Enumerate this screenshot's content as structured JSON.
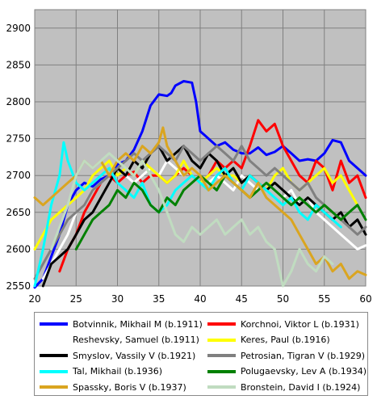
{
  "chart_data": {
    "type": "line",
    "title": "",
    "xlabel": "",
    "ylabel": "",
    "xlim": [
      20,
      60
    ],
    "ylim": [
      2550,
      2925
    ],
    "x_ticks": [
      20,
      25,
      30,
      35,
      40,
      45,
      50,
      55,
      60
    ],
    "y_ticks": [
      2550,
      2600,
      2650,
      2700,
      2750,
      2800,
      2850,
      2900
    ],
    "grid": true,
    "legend_position": "bottom",
    "series": [
      {
        "name": "Botvinnik, Mikhail M (b.1911)",
        "color": "#0000ff",
        "x": [
          20,
          21,
          22,
          23,
          24,
          25,
          26,
          27,
          28,
          29,
          30,
          31,
          32,
          33,
          34,
          35,
          36,
          36.5,
          37,
          38,
          39,
          39.5,
          40,
          41,
          42,
          43,
          44,
          45,
          46,
          47,
          48,
          49,
          50,
          51,
          52,
          53,
          54,
          55,
          56,
          57,
          58,
          59,
          60
        ],
        "y": [
          2548,
          2560,
          2590,
          2620,
          2660,
          2680,
          2690,
          2685,
          2695,
          2700,
          2715,
          2720,
          2735,
          2760,
          2795,
          2810,
          2808,
          2812,
          2822,
          2828,
          2826,
          2800,
          2760,
          2750,
          2740,
          2745,
          2735,
          2730,
          2730,
          2738,
          2728,
          2732,
          2740,
          2730,
          2720,
          2722,
          2720,
          2730,
          2748,
          2745,
          2720,
          2710,
          2700
        ]
      },
      {
        "name": "Korchnoi, Viktor L (b.1931)",
        "color": "#ff0000",
        "x": [
          23,
          24,
          25,
          26,
          27,
          28,
          29,
          30,
          31,
          32,
          33,
          34,
          35,
          36,
          37,
          38,
          39,
          40,
          41,
          42,
          43,
          44,
          45,
          46,
          47,
          48,
          49,
          50,
          51,
          52,
          53,
          54,
          55,
          56,
          57,
          58,
          59,
          60
        ],
        "y": [
          2570,
          2600,
          2620,
          2650,
          2670,
          2690,
          2700,
          2690,
          2700,
          2705,
          2690,
          2700,
          2700,
          2690,
          2700,
          2710,
          2700,
          2690,
          2700,
          2720,
          2710,
          2720,
          2710,
          2740,
          2775,
          2760,
          2770,
          2740,
          2720,
          2700,
          2690,
          2720,
          2710,
          2680,
          2720,
          2690,
          2700,
          2670
        ]
      },
      {
        "name": "Reshevsky, Samuel (b.1911)",
        "color": "#ffffff",
        "x": [
          21,
          22,
          23,
          24,
          25,
          26,
          27,
          28,
          29,
          30,
          31,
          32,
          33,
          34,
          35,
          36,
          37,
          38,
          39,
          40,
          41,
          42,
          43,
          44,
          45,
          46,
          47,
          48,
          49,
          50,
          51,
          52,
          53,
          54,
          55,
          56,
          57,
          58,
          59,
          60
        ],
        "y": [
          2560,
          2580,
          2600,
          2620,
          2650,
          2660,
          2680,
          2690,
          2700,
          2710,
          2700,
          2690,
          2700,
          2710,
          2700,
          2720,
          2710,
          2700,
          2710,
          2700,
          2690,
          2700,
          2690,
          2680,
          2700,
          2690,
          2680,
          2690,
          2680,
          2670,
          2680,
          2660,
          2670,
          2650,
          2640,
          2630,
          2620,
          2610,
          2600,
          2605
        ]
      },
      {
        "name": "Keres, Paul (b.1916)",
        "color": "#ffff00",
        "x": [
          20,
          21,
          22,
          23,
          24,
          25,
          26,
          27,
          28,
          29,
          30,
          31,
          32,
          33,
          34,
          35,
          36,
          37,
          38,
          39,
          40,
          41,
          42,
          43,
          44,
          45,
          46,
          47,
          48,
          49,
          50,
          51,
          52,
          53,
          54,
          55,
          56,
          57,
          58,
          59
        ],
        "y": [
          2600,
          2620,
          2640,
          2650,
          2660,
          2670,
          2680,
          2700,
          2710,
          2720,
          2700,
          2710,
          2700,
          2720,
          2710,
          2700,
          2690,
          2700,
          2720,
          2700,
          2690,
          2700,
          2710,
          2700,
          2700,
          2690,
          2700,
          2690,
          2680,
          2700,
          2710,
          2690,
          2680,
          2690,
          2700,
          2710,
          2690,
          2700,
          2680,
          2660
        ]
      },
      {
        "name": "Smyslov, Vassily V (b.1921)",
        "color": "#000000",
        "x": [
          21,
          22,
          23,
          24,
          25,
          26,
          27,
          28,
          29,
          30,
          31,
          32,
          33,
          34,
          35,
          36,
          37,
          38,
          39,
          40,
          41,
          42,
          43,
          44,
          45,
          46,
          47,
          48,
          49,
          50,
          51,
          52,
          53,
          54,
          55,
          56,
          57,
          58,
          59,
          60
        ],
        "y": [
          2550,
          2580,
          2590,
          2600,
          2620,
          2640,
          2650,
          2670,
          2690,
          2710,
          2700,
          2720,
          2710,
          2730,
          2740,
          2720,
          2730,
          2740,
          2720,
          2710,
          2730,
          2720,
          2700,
          2710,
          2690,
          2700,
          2690,
          2680,
          2690,
          2680,
          2670,
          2660,
          2670,
          2660,
          2650,
          2640,
          2650,
          2630,
          2640,
          2620
        ]
      },
      {
        "name": "Petrosian, Tigran V (b.1929)",
        "color": "#808080",
        "x": [
          20,
          21,
          22,
          23,
          24,
          25,
          26,
          27,
          28,
          29,
          30,
          31,
          32,
          33,
          34,
          35,
          36,
          37,
          38,
          39,
          40,
          41,
          42,
          43,
          44,
          45,
          46,
          47,
          48,
          49,
          50,
          51,
          52,
          53,
          54,
          55,
          56,
          57,
          58,
          59,
          60
        ],
        "y": [
          2560,
          2580,
          2600,
          2620,
          2640,
          2650,
          2660,
          2680,
          2690,
          2700,
          2710,
          2720,
          2730,
          2720,
          2730,
          2740,
          2730,
          2720,
          2740,
          2730,
          2720,
          2730,
          2740,
          2730,
          2720,
          2740,
          2720,
          2710,
          2700,
          2710,
          2700,
          2690,
          2680,
          2690,
          2670,
          2660,
          2650,
          2640,
          2630,
          2620,
          2630
        ]
      },
      {
        "name": "Tal, Mikhail (b.1936)",
        "color": "#00ffff",
        "x": [
          20,
          21,
          22,
          23,
          23.5,
          24,
          25,
          26,
          27,
          28,
          29,
          30,
          31,
          32,
          33,
          34,
          35,
          36,
          37,
          38,
          39,
          40,
          41,
          42,
          43,
          44,
          45,
          46,
          47,
          48,
          49,
          50,
          51,
          52,
          53,
          54,
          55,
          56,
          57
        ],
        "y": [
          2550,
          2600,
          2660,
          2700,
          2745,
          2720,
          2690,
          2680,
          2690,
          2700,
          2710,
          2690,
          2680,
          2670,
          2690,
          2660,
          2650,
          2660,
          2680,
          2690,
          2700,
          2690,
          2680,
          2700,
          2710,
          2690,
          2680,
          2700,
          2690,
          2680,
          2670,
          2660,
          2670,
          2650,
          2640,
          2660,
          2650,
          2640,
          2630
        ]
      },
      {
        "name": "Polugaevsky, Lev A (b.1934)",
        "color": "#008000",
        "x": [
          25,
          26,
          27,
          28,
          29,
          30,
          31,
          32,
          33,
          34,
          35,
          36,
          37,
          38,
          39,
          40,
          41,
          42,
          43,
          44,
          45,
          46,
          47,
          48,
          49,
          50,
          51,
          52,
          53,
          54,
          55,
          56,
          57,
          58,
          59,
          60
        ],
        "y": [
          2600,
          2620,
          2640,
          2650,
          2660,
          2680,
          2670,
          2690,
          2680,
          2660,
          2650,
          2670,
          2660,
          2680,
          2690,
          2700,
          2690,
          2680,
          2700,
          2690,
          2680,
          2670,
          2680,
          2690,
          2680,
          2670,
          2660,
          2670,
          2660,
          2650,
          2660,
          2650,
          2640,
          2650,
          2660,
          2640
        ]
      },
      {
        "name": "Spassky, Boris V (b.1937)",
        "color": "#daa520",
        "x": [
          20,
          21,
          22,
          23,
          24,
          25,
          26,
          27,
          28,
          29,
          30,
          31,
          32,
          33,
          34,
          35,
          35.5,
          36,
          37,
          38,
          39,
          40,
          41,
          42,
          43,
          44,
          45,
          46,
          47,
          48,
          49,
          50,
          51,
          52,
          53,
          54,
          55,
          56,
          57,
          58,
          59,
          60
        ],
        "y": [
          2670,
          2660,
          2670,
          2680,
          2690,
          2700,
          2720,
          2710,
          2720,
          2700,
          2720,
          2730,
          2720,
          2740,
          2730,
          2745,
          2765,
          2740,
          2720,
          2700,
          2710,
          2700,
          2680,
          2690,
          2700,
          2690,
          2680,
          2670,
          2690,
          2670,
          2660,
          2650,
          2640,
          2620,
          2600,
          2580,
          2590,
          2570,
          2580,
          2560,
          2570,
          2565
        ]
      },
      {
        "name": "Bronstein, David I (b.1924)",
        "color": "#c0dcc0",
        "x": [
          22,
          23,
          24,
          25,
          26,
          27,
          28,
          29,
          30,
          31,
          32,
          33,
          34,
          35,
          36,
          37,
          38,
          39,
          40,
          41,
          42,
          43,
          44,
          45,
          46,
          47,
          48,
          49,
          50,
          51,
          52,
          53,
          54,
          55,
          56
        ],
        "y": [
          2600,
          2630,
          2660,
          2700,
          2720,
          2710,
          2720,
          2730,
          2720,
          2710,
          2700,
          2720,
          2700,
          2680,
          2650,
          2620,
          2610,
          2630,
          2620,
          2630,
          2640,
          2620,
          2630,
          2640,
          2620,
          2630,
          2610,
          2600,
          2550,
          2570,
          2600,
          2580,
          2570,
          2590,
          2580
        ]
      }
    ]
  }
}
